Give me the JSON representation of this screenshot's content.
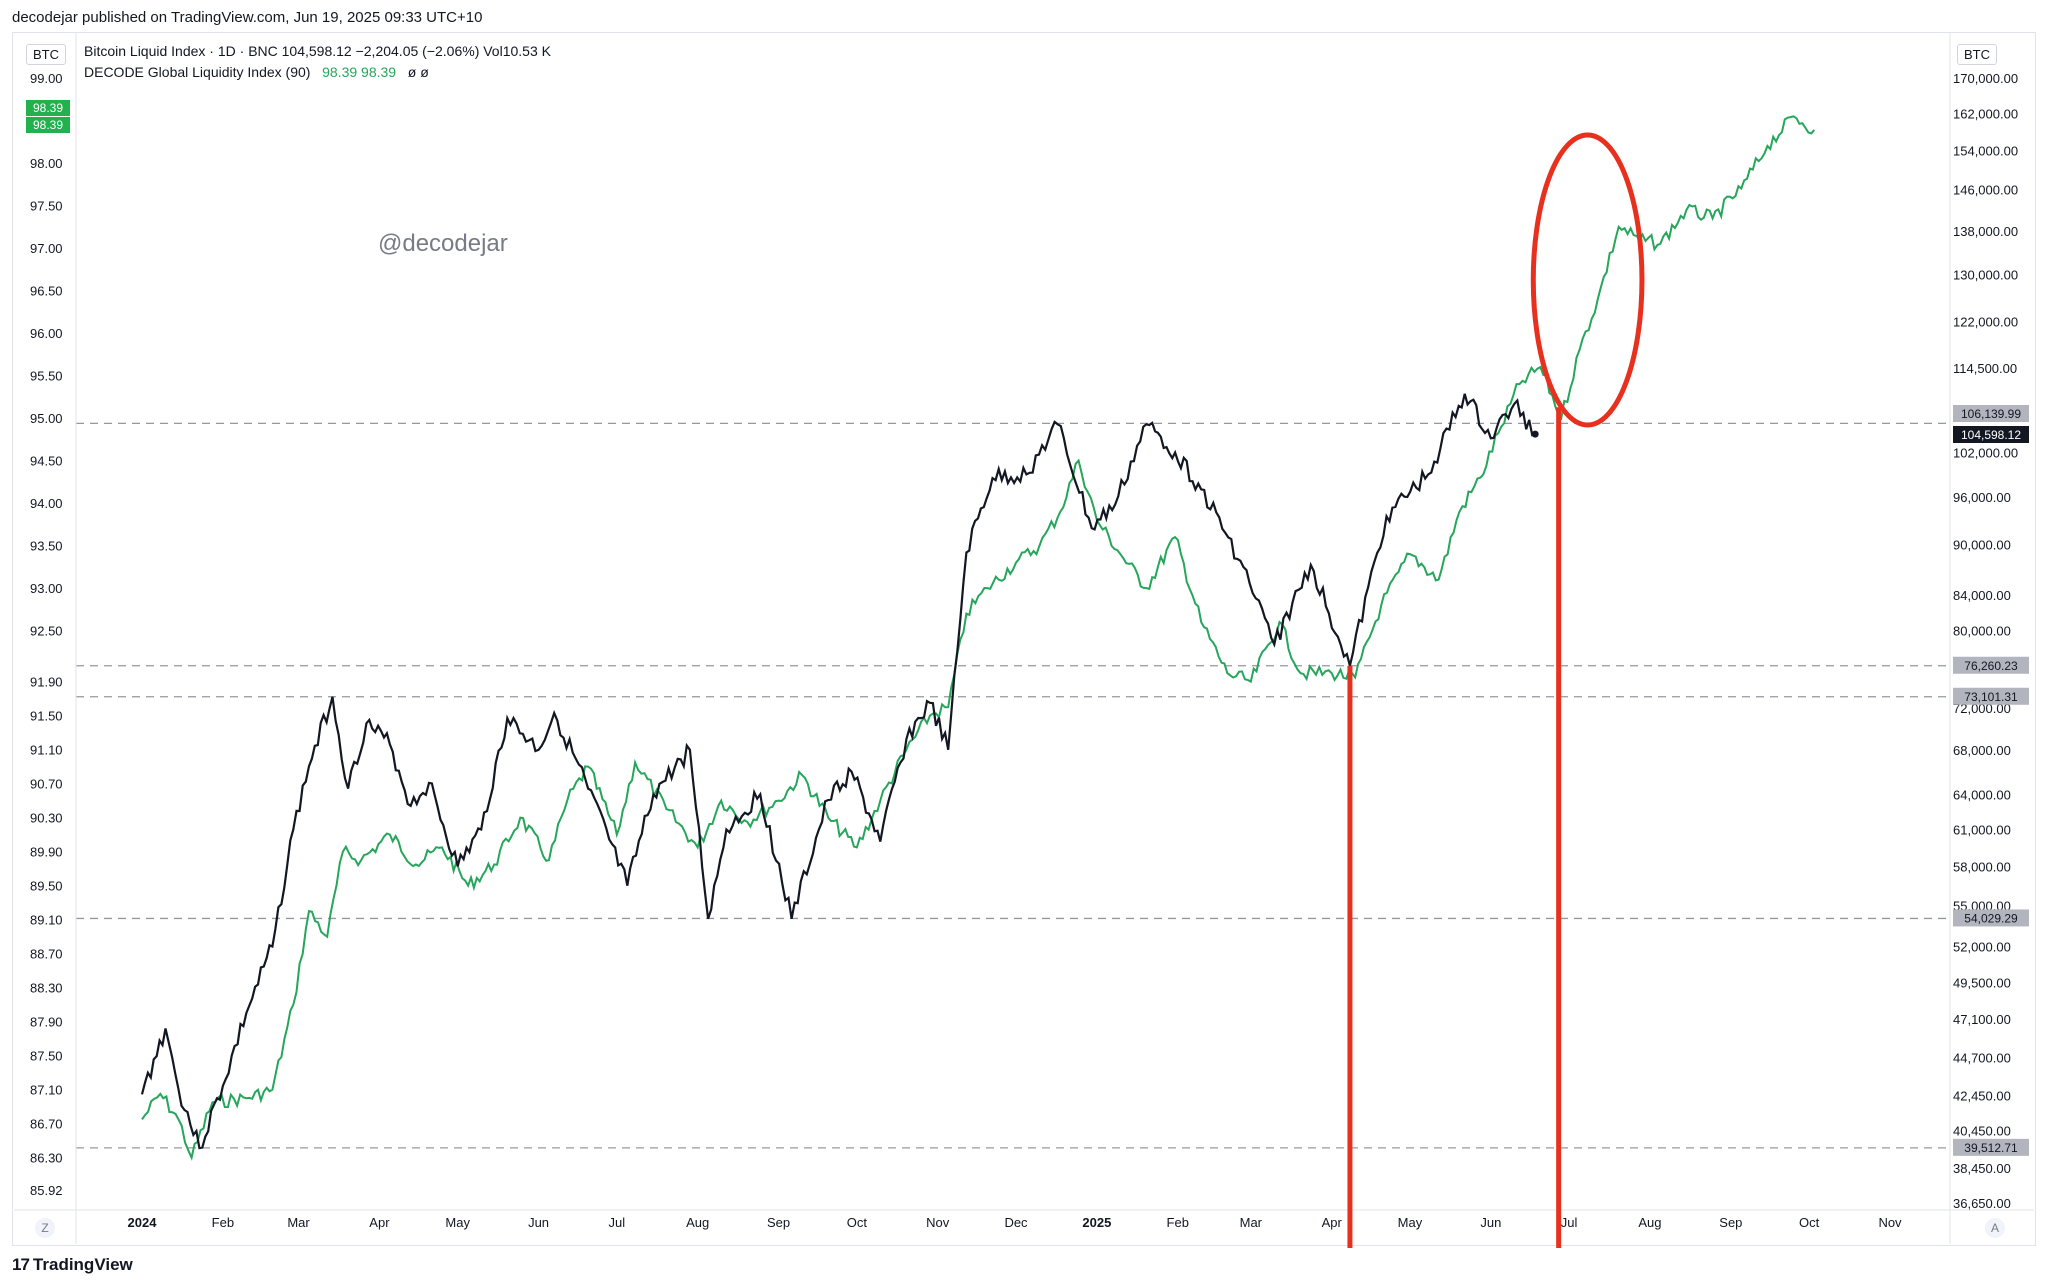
{
  "header": {
    "published_text": "decodejar published on TradingView.com, Jun 19, 2025 09:33 UTC+10"
  },
  "left_axis_title": "BTC",
  "right_axis_title": "BTC",
  "legend": {
    "line1": "Bitcoin Liquid Index · 1D · BNC  104,598.12  −2,204.05 (−2.06%)  Vol10.53 K",
    "line2_name": "DECODE Global Liquidity Index (90)",
    "line2_values": "98.39  98.39",
    "line2_extra": "ø  ø"
  },
  "watermark": "@decodejar",
  "footer": {
    "brand": "TradingView",
    "logo": "17"
  },
  "corner": {
    "left": "Z",
    "right": "A"
  },
  "colors": {
    "btc_line": "#131722",
    "liquidity_line": "#26a65b",
    "annotation": "#e8301e",
    "dash": "#9598a1"
  },
  "chart_data": {
    "type": "line",
    "x_ticks": [
      "2024",
      "Feb",
      "Mar",
      "Apr",
      "May",
      "Jun",
      "Jul",
      "Aug",
      "Sep",
      "Oct",
      "Nov",
      "Dec",
      "2025",
      "Feb",
      "Mar",
      "Apr",
      "May",
      "Jun",
      "Jul",
      "Aug",
      "Sep",
      "Oct",
      "Nov"
    ],
    "left_axis": {
      "ticks": [
        "99.00",
        "98.00",
        "97.50",
        "97.00",
        "96.50",
        "96.00",
        "95.50",
        "95.00",
        "94.50",
        "94.00",
        "93.50",
        "93.00",
        "92.50",
        "91.90",
        "91.50",
        "91.10",
        "90.70",
        "90.30",
        "89.90",
        "89.50",
        "89.10",
        "88.70",
        "88.30",
        "87.90",
        "87.50",
        "87.10",
        "86.70",
        "86.30",
        "85.92"
      ],
      "tag_values": [
        "98.39",
        "98.39"
      ]
    },
    "right_axis": {
      "ticks": [
        "170,000.00",
        "162,000.00",
        "154,000.00",
        "146,000.00",
        "138,000.00",
        "130,000.00",
        "122,000.00",
        "114,500.00",
        "102,000.00",
        "96,000.00",
        "90,000.00",
        "84,000.00",
        "80,000.00",
        "72,000.00",
        "68,000.00",
        "64,000.00",
        "61,000.00",
        "58,000.00",
        "55,000.00",
        "52,000.00",
        "49,500.00",
        "47,100.00",
        "44,700.00",
        "42,450.00",
        "40,450.00",
        "38,450.00",
        "36,650.00"
      ],
      "level_tags": [
        "106,139.99",
        "76,260.23",
        "73,101.31",
        "54,029.29",
        "39,512.71"
      ],
      "last_price_tag": "104,598.12"
    },
    "series": [
      {
        "name": "Bitcoin Liquid Index",
        "points": [
          [
            "2024-01-01",
            42500
          ],
          [
            "2024-01-10",
            46500
          ],
          [
            "2024-01-15",
            42800
          ],
          [
            "2024-01-23",
            39500
          ],
          [
            "2024-02-01",
            43000
          ],
          [
            "2024-02-10",
            47500
          ],
          [
            "2024-02-20",
            52000
          ],
          [
            "2024-02-28",
            61000
          ],
          [
            "2024-03-05",
            66500
          ],
          [
            "2024-03-14",
            73100
          ],
          [
            "2024-03-20",
            64500
          ],
          [
            "2024-03-27",
            70500
          ],
          [
            "2024-04-05",
            68500
          ],
          [
            "2024-04-13",
            63000
          ],
          [
            "2024-04-20",
            65000
          ],
          [
            "2024-05-01",
            58000
          ],
          [
            "2024-05-10",
            61000
          ],
          [
            "2024-05-20",
            71000
          ],
          [
            "2024-06-01",
            68000
          ],
          [
            "2024-06-07",
            71500
          ],
          [
            "2024-06-20",
            64500
          ],
          [
            "2024-07-05",
            56500
          ],
          [
            "2024-07-15",
            64000
          ],
          [
            "2024-07-29",
            68000
          ],
          [
            "2024-08-05",
            54000
          ],
          [
            "2024-08-12",
            61000
          ],
          [
            "2024-08-25",
            64000
          ],
          [
            "2024-09-06",
            54000
          ],
          [
            "2024-09-20",
            63500
          ],
          [
            "2024-09-29",
            66000
          ],
          [
            "2024-10-10",
            60000
          ],
          [
            "2024-10-20",
            69000
          ],
          [
            "2024-10-29",
            72500
          ],
          [
            "2024-11-05",
            68000
          ],
          [
            "2024-11-12",
            89000
          ],
          [
            "2024-11-22",
            98500
          ],
          [
            "2024-12-05",
            99000
          ],
          [
            "2024-12-17",
            106000
          ],
          [
            "2024-12-30",
            92000
          ],
          [
            "2025-01-08",
            95000
          ],
          [
            "2025-01-20",
            106000
          ],
          [
            "2025-01-31",
            102000
          ],
          [
            "2025-02-10",
            97000
          ],
          [
            "2025-02-25",
            88000
          ],
          [
            "2025-03-10",
            78500
          ],
          [
            "2025-03-24",
            87500
          ],
          [
            "2025-04-08",
            76260
          ],
          [
            "2025-04-22",
            93500
          ],
          [
            "2025-05-08",
            99000
          ],
          [
            "2025-05-22",
            110500
          ],
          [
            "2025-06-01",
            104000
          ],
          [
            "2025-06-10",
            109000
          ],
          [
            "2025-06-18",
            104598
          ]
        ]
      },
      {
        "name": "DECODE Global Liquidity Index (90)",
        "points": [
          [
            "2024-01-01",
            86.75
          ],
          [
            "2024-01-08",
            87.05
          ],
          [
            "2024-01-15",
            86.75
          ],
          [
            "2024-01-20",
            86.3
          ],
          [
            "2024-01-28",
            86.95
          ],
          [
            "2024-02-10",
            87.0
          ],
          [
            "2024-02-20",
            87.1
          ],
          [
            "2024-02-28",
            88.1
          ],
          [
            "2024-03-05",
            89.2
          ],
          [
            "2024-03-12",
            88.9
          ],
          [
            "2024-03-18",
            89.9
          ],
          [
            "2024-03-25",
            89.8
          ],
          [
            "2024-04-05",
            90.1
          ],
          [
            "2024-04-15",
            89.75
          ],
          [
            "2024-04-25",
            89.95
          ],
          [
            "2024-05-05",
            89.5
          ],
          [
            "2024-05-15",
            89.75
          ],
          [
            "2024-05-25",
            90.3
          ],
          [
            "2024-06-05",
            89.8
          ],
          [
            "2024-06-12",
            90.5
          ],
          [
            "2024-06-20",
            90.9
          ],
          [
            "2024-07-01",
            90.1
          ],
          [
            "2024-07-08",
            90.95
          ],
          [
            "2024-07-20",
            90.4
          ],
          [
            "2024-08-01",
            89.95
          ],
          [
            "2024-08-10",
            90.5
          ],
          [
            "2024-08-20",
            90.25
          ],
          [
            "2024-09-01",
            90.5
          ],
          [
            "2024-09-10",
            90.8
          ],
          [
            "2024-09-20",
            90.3
          ],
          [
            "2024-10-01",
            89.95
          ],
          [
            "2024-10-10",
            90.5
          ],
          [
            "2024-10-20",
            91.1
          ],
          [
            "2024-10-29",
            91.5
          ],
          [
            "2024-11-05",
            91.6
          ],
          [
            "2024-11-12",
            92.7
          ],
          [
            "2024-11-20",
            93.0
          ],
          [
            "2024-12-01",
            93.3
          ],
          [
            "2024-12-10",
            93.5
          ],
          [
            "2024-12-18",
            93.9
          ],
          [
            "2024-12-25",
            94.5
          ],
          [
            "2025-01-01",
            93.8
          ],
          [
            "2025-01-10",
            93.4
          ],
          [
            "2025-01-20",
            93.0
          ],
          [
            "2025-01-31",
            93.6
          ],
          [
            "2025-02-10",
            92.6
          ],
          [
            "2025-02-20",
            92.0
          ],
          [
            "2025-03-01",
            91.9
          ],
          [
            "2025-03-12",
            92.6
          ],
          [
            "2025-03-20",
            92.0
          ],
          [
            "2025-04-01",
            92.0
          ],
          [
            "2025-04-10",
            91.95
          ],
          [
            "2025-04-20",
            92.8
          ],
          [
            "2025-05-01",
            93.4
          ],
          [
            "2025-05-12",
            93.1
          ],
          [
            "2025-05-20",
            93.9
          ],
          [
            "2025-05-28",
            94.3
          ],
          [
            "2025-06-05",
            94.9
          ],
          [
            "2025-06-12",
            95.4
          ],
          [
            "2025-06-20",
            95.6
          ],
          [
            "2025-06-28",
            95.0
          ],
          [
            "2025-07-05",
            95.8
          ],
          [
            "2025-07-12",
            96.4
          ],
          [
            "2025-07-20",
            97.25
          ],
          [
            "2025-07-28",
            97.1
          ],
          [
            "2025-08-05",
            97.05
          ],
          [
            "2025-08-15",
            97.45
          ],
          [
            "2025-08-25",
            97.35
          ],
          [
            "2025-09-05",
            97.7
          ],
          [
            "2025-09-15",
            98.2
          ],
          [
            "2025-09-25",
            98.55
          ],
          [
            "2025-10-03",
            98.39
          ]
        ]
      }
    ],
    "horizontal_levels": [
      106139.99,
      76260.23,
      73101.31,
      54029.29,
      39512.71
    ],
    "vertical_markers": [
      "2025-04-08",
      "2025-06-27"
    ],
    "highlight_circle_around": [
      "2025-06-28",
      "2025-08-01"
    ]
  }
}
